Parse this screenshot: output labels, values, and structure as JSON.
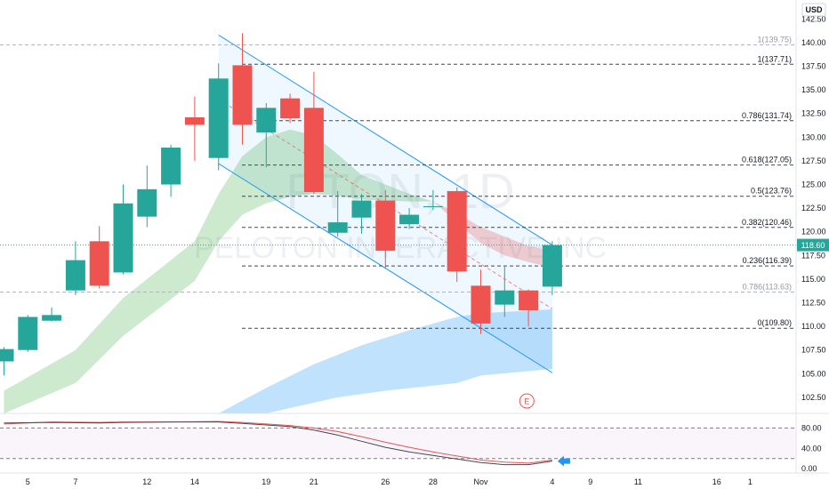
{
  "header": {
    "currency": "USD"
  },
  "watermark": {
    "symbol": "PTON, 1D",
    "name": "PELOTON INTERACTIVE INC"
  },
  "last_price": {
    "label": "118.60",
    "value": 118.6,
    "color": "#26a69a"
  },
  "earnings_marker": {
    "label": "E",
    "color": "#ef5350",
    "x": "Nov 2"
  },
  "colors": {
    "up": "#26a69a",
    "down": "#ef5350",
    "channel": "#2196f3",
    "grid_line": "#434651"
  },
  "chart_data": [
    {
      "type": "candlestick",
      "x_ticks": [
        "5",
        "7",
        "12",
        "14",
        "19",
        "21",
        "26",
        "28",
        "Nov",
        "4",
        "9",
        "11",
        "16",
        "1"
      ],
      "y_ticks": [
        "102.50",
        "105.00",
        "107.50",
        "110.00",
        "112.50",
        "115.00",
        "117.50",
        "120.00",
        "122.50",
        "125.00",
        "127.50",
        "130.00",
        "132.50",
        "135.00",
        "137.50",
        "140.00",
        "142.50"
      ],
      "ylim": [
        100.8,
        144.5
      ],
      "candles": [
        {
          "date": "Oct 4",
          "o": 106.3,
          "h": 107.8,
          "l": 104.8,
          "c": 107.6
        },
        {
          "date": "Oct 5",
          "o": 107.5,
          "h": 111.2,
          "l": 107.3,
          "c": 111.0
        },
        {
          "date": "Oct 6",
          "o": 110.6,
          "h": 112.0,
          "l": 110.5,
          "c": 111.2
        },
        {
          "date": "Oct 7",
          "o": 113.8,
          "h": 119.0,
          "l": 113.3,
          "c": 117.0
        },
        {
          "date": "Oct 8",
          "o": 119.0,
          "h": 120.6,
          "l": 114.0,
          "c": 114.3
        },
        {
          "date": "Oct 11",
          "o": 115.7,
          "h": 125.0,
          "l": 115.5,
          "c": 123.0
        },
        {
          "date": "Oct 12",
          "o": 121.6,
          "h": 127.0,
          "l": 120.5,
          "c": 124.5
        },
        {
          "date": "Oct 13",
          "o": 125.0,
          "h": 129.2,
          "l": 123.7,
          "c": 128.9
        },
        {
          "date": "Oct 14",
          "o": 132.1,
          "h": 134.3,
          "l": 127.5,
          "c": 131.3
        },
        {
          "date": "Oct 15",
          "o": 127.8,
          "h": 137.8,
          "l": 126.5,
          "c": 136.2
        },
        {
          "date": "Oct 18",
          "o": 137.6,
          "h": 141.0,
          "l": 129.2,
          "c": 131.3
        },
        {
          "date": "Oct 19",
          "o": 130.5,
          "h": 133.6,
          "l": 126.8,
          "c": 133.1
        },
        {
          "date": "Oct 20",
          "o": 134.1,
          "h": 134.6,
          "l": 131.5,
          "c": 132.0
        },
        {
          "date": "Oct 21",
          "o": 133.1,
          "h": 136.9,
          "l": 124.0,
          "c": 124.2
        },
        {
          "date": "Oct 22",
          "o": 119.9,
          "h": 124.3,
          "l": 119.5,
          "c": 121.0
        },
        {
          "date": "Oct 25",
          "o": 121.5,
          "h": 124.0,
          "l": 119.8,
          "c": 123.3
        },
        {
          "date": "Oct 26",
          "o": 123.3,
          "h": 124.4,
          "l": 116.2,
          "c": 118.0
        },
        {
          "date": "Oct 27",
          "o": 120.8,
          "h": 122.5,
          "l": 120.3,
          "c": 121.8
        },
        {
          "date": "Oct 28",
          "o": 122.6,
          "h": 124.4,
          "l": 122.3,
          "c": 122.7
        },
        {
          "date": "Oct 29",
          "o": 124.3,
          "h": 124.7,
          "l": 114.7,
          "c": 115.8
        },
        {
          "date": "Nov 1",
          "o": 114.3,
          "h": 116.0,
          "l": 109.2,
          "c": 110.3
        },
        {
          "date": "Nov 2",
          "o": 112.3,
          "h": 116.3,
          "l": 111.0,
          "c": 113.8
        },
        {
          "date": "Nov 3",
          "o": 113.8,
          "h": 113.9,
          "l": 110.0,
          "c": 111.7
        },
        {
          "date": "Nov 4",
          "o": 114.2,
          "h": 119.0,
          "l": 113.3,
          "c": 118.6
        }
      ],
      "fib_levels": [
        {
          "label": "1(139.75)",
          "value": 139.75,
          "faded": true
        },
        {
          "label": "1(137.71)",
          "value": 137.71
        },
        {
          "label": "0.786(131.74)",
          "value": 131.74
        },
        {
          "label": "0.618(127.05)",
          "value": 127.05
        },
        {
          "label": "0.5(123.76)",
          "value": 123.76
        },
        {
          "label": "0.382(120.46)",
          "value": 120.46
        },
        {
          "label": "0.236(116.39)",
          "value": 116.39
        },
        {
          "label": "0.786(113.63)",
          "value": 113.63,
          "faded": true
        },
        {
          "label": "0(109.80)",
          "value": 109.8
        }
      ],
      "channel": {
        "upper": [
          {
            "x": "Oct 15",
            "y": 140.8
          },
          {
            "x": "Nov 4",
            "y": 118.6
          }
        ],
        "lower": [
          {
            "x": "Oct 15",
            "y": 127.2
          },
          {
            "x": "Nov 4",
            "y": 105.1
          }
        ]
      },
      "green_cloud": {
        "upper": [
          {
            "x": "Oct 4",
            "y": 103.2
          },
          {
            "x": "Oct 7",
            "y": 107.5
          },
          {
            "x": "Oct 11",
            "y": 113.0
          },
          {
            "x": "Oct 14",
            "y": 119.0
          },
          {
            "x": "Oct 15",
            "y": 124.0
          },
          {
            "x": "Oct 18",
            "y": 128.0
          },
          {
            "x": "Oct 19",
            "y": 130.0
          },
          {
            "x": "Oct 20",
            "y": 130.8
          },
          {
            "x": "Oct 21",
            "y": 130.2
          },
          {
            "x": "Oct 22",
            "y": 128.2
          },
          {
            "x": "Oct 25",
            "y": 126.0
          },
          {
            "x": "Oct 26",
            "y": 125.0
          },
          {
            "x": "Oct 27",
            "y": 124.0
          },
          {
            "x": "Oct 28",
            "y": 123.2
          }
        ],
        "lower": [
          {
            "x": "Oct 4",
            "y": 100.8
          },
          {
            "x": "Oct 7",
            "y": 104.0
          },
          {
            "x": "Oct 11",
            "y": 109.0
          },
          {
            "x": "Oct 14",
            "y": 114.8
          },
          {
            "x": "Oct 15",
            "y": 119.0
          },
          {
            "x": "Oct 18",
            "y": 121.8
          },
          {
            "x": "Oct 19",
            "y": 123.0
          },
          {
            "x": "Oct 20",
            "y": 123.7
          },
          {
            "x": "Oct 21",
            "y": 124.0
          },
          {
            "x": "Oct 22",
            "y": 123.8
          },
          {
            "x": "Oct 25",
            "y": 123.4
          },
          {
            "x": "Oct 26",
            "y": 123.3
          },
          {
            "x": "Oct 27",
            "y": 123.2
          },
          {
            "x": "Oct 28",
            "y": 123.2
          }
        ]
      },
      "red_cloud": {
        "upper": [
          {
            "x": "Oct 28",
            "y": 123.2
          },
          {
            "x": "Oct 29",
            "y": 122.0
          },
          {
            "x": "Nov 1",
            "y": 120.5
          },
          {
            "x": "Nov 2",
            "y": 119.5
          },
          {
            "x": "Nov 3",
            "y": 118.5
          },
          {
            "x": "Nov 4",
            "y": 118.0
          }
        ],
        "lower": [
          {
            "x": "Oct 28",
            "y": 123.2
          },
          {
            "x": "Oct 29",
            "y": 121.0
          },
          {
            "x": "Nov 1",
            "y": 118.8
          },
          {
            "x": "Nov 2",
            "y": 117.5
          },
          {
            "x": "Nov 3",
            "y": 116.8
          },
          {
            "x": "Nov 4",
            "y": 116.2
          }
        ]
      },
      "blue_cloud": {
        "upper": [
          {
            "x": "Oct 15",
            "y": 100.8
          },
          {
            "x": "Oct 19",
            "y": 103.5
          },
          {
            "x": "Oct 21",
            "y": 106.0
          },
          {
            "x": "Oct 25",
            "y": 108.0
          },
          {
            "x": "Oct 27",
            "y": 109.6
          },
          {
            "x": "Oct 29",
            "y": 111.0
          },
          {
            "x": "Nov 1",
            "y": 111.4
          },
          {
            "x": "Nov 4",
            "y": 111.8
          }
        ],
        "lower": [
          {
            "x": "Oct 15",
            "y": 100.8
          },
          {
            "x": "Oct 19",
            "y": 100.8
          },
          {
            "x": "Oct 22",
            "y": 102.5
          },
          {
            "x": "Oct 26",
            "y": 103.2
          },
          {
            "x": "Oct 29",
            "y": 104.0
          },
          {
            "x": "Nov 1",
            "y": 104.8
          },
          {
            "x": "Nov 4",
            "y": 105.5
          }
        ]
      }
    },
    {
      "type": "line",
      "name": "oscillator",
      "y_ticks": [
        "80.00",
        "40.00",
        "0.00"
      ],
      "ylim": [
        -5,
        100
      ],
      "levels": [
        80,
        20
      ],
      "series": [
        {
          "color": "#ef5350",
          "points": [
            {
              "x": "Oct 4",
              "y": 88
            },
            {
              "x": "Oct 6",
              "y": 92
            },
            {
              "x": "Oct 8",
              "y": 91
            },
            {
              "x": "Oct 11",
              "y": 92
            },
            {
              "x": "Oct 13",
              "y": 92
            },
            {
              "x": "Oct 15",
              "y": 93
            },
            {
              "x": "Oct 18",
              "y": 91
            },
            {
              "x": "Oct 19",
              "y": 88
            },
            {
              "x": "Oct 20",
              "y": 85
            },
            {
              "x": "Oct 21",
              "y": 80
            },
            {
              "x": "Oct 22",
              "y": 73
            },
            {
              "x": "Oct 25",
              "y": 63
            },
            {
              "x": "Oct 26",
              "y": 52
            },
            {
              "x": "Oct 27",
              "y": 42
            },
            {
              "x": "Oct 28",
              "y": 33
            },
            {
              "x": "Oct 29",
              "y": 25
            },
            {
              "x": "Nov 1",
              "y": 17
            },
            {
              "x": "Nov 2",
              "y": 13
            },
            {
              "x": "Nov 3",
              "y": 11
            },
            {
              "x": "Nov 4",
              "y": 17
            }
          ]
        },
        {
          "color": "#434651",
          "points": [
            {
              "x": "Oct 4",
              "y": 90
            },
            {
              "x": "Oct 6",
              "y": 91
            },
            {
              "x": "Oct 8",
              "y": 90
            },
            {
              "x": "Oct 11",
              "y": 91
            },
            {
              "x": "Oct 13",
              "y": 92
            },
            {
              "x": "Oct 15",
              "y": 92
            },
            {
              "x": "Oct 18",
              "y": 89
            },
            {
              "x": "Oct 19",
              "y": 86
            },
            {
              "x": "Oct 20",
              "y": 83
            },
            {
              "x": "Oct 21",
              "y": 76
            },
            {
              "x": "Oct 22",
              "y": 66
            },
            {
              "x": "Oct 25",
              "y": 54
            },
            {
              "x": "Oct 26",
              "y": 42
            },
            {
              "x": "Oct 27",
              "y": 33
            },
            {
              "x": "Oct 28",
              "y": 26
            },
            {
              "x": "Oct 29",
              "y": 19
            },
            {
              "x": "Nov 1",
              "y": 12
            },
            {
              "x": "Nov 2",
              "y": 8
            },
            {
              "x": "Nov 3",
              "y": 8
            },
            {
              "x": "Nov 4",
              "y": 15
            }
          ]
        }
      ],
      "arrow": {
        "x": "Nov 4",
        "y": 15,
        "color": "#2196f3"
      }
    }
  ]
}
